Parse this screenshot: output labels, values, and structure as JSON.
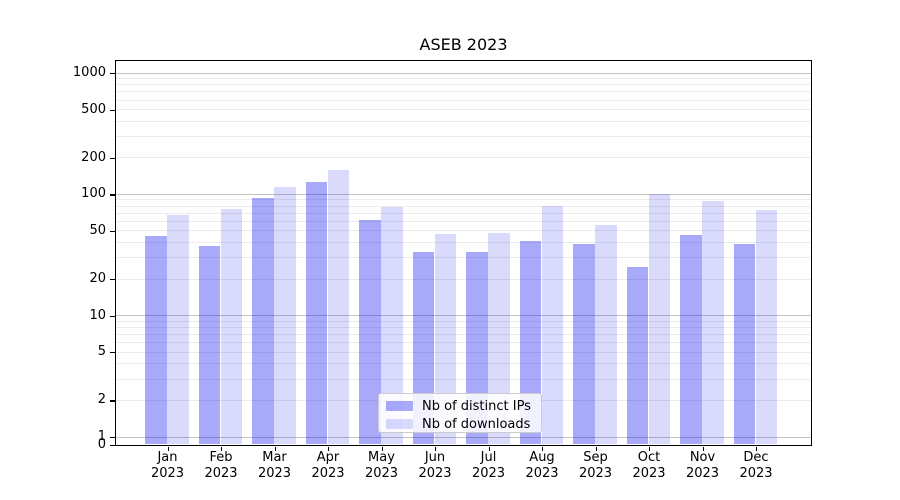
{
  "figure": {
    "background": "#ffffff"
  },
  "chart_data": {
    "type": "bar",
    "title": "ASEB 2023",
    "year_label": "2023",
    "categories": [
      "Jan",
      "Feb",
      "Mar",
      "Apr",
      "May",
      "Jun",
      "Jul",
      "Aug",
      "Sep",
      "Oct",
      "Nov",
      "Dec"
    ],
    "series": [
      {
        "name": "Nb of distinct IPs",
        "color": "rgba(8,8,240,0.35)",
        "values": [
          45,
          37,
          92,
          125,
          61,
          33,
          33,
          41,
          39,
          25,
          46,
          39
        ]
      },
      {
        "name": "Nb of downloads",
        "color": "rgba(8,8,240,0.15)",
        "values": [
          67,
          75,
          113,
          157,
          78,
          47,
          48,
          80,
          55,
          100,
          88,
          73
        ]
      }
    ],
    "xlabel": "",
    "ylabel": "",
    "yscale": "symlog",
    "ylim": [
      0,
      1250
    ],
    "yticks": [
      0,
      1,
      2,
      5,
      10,
      20,
      50,
      100,
      200,
      500,
      1000
    ],
    "grid": {
      "enabled": true,
      "major_values": [
        1,
        10,
        100,
        1000
      ],
      "minor_base_multiples": [
        2,
        3,
        4,
        5,
        6,
        7,
        8,
        9
      ],
      "major_color": "#c3c3c3",
      "minor_color": "#ececec"
    },
    "legend": {
      "position": "lower center"
    }
  }
}
